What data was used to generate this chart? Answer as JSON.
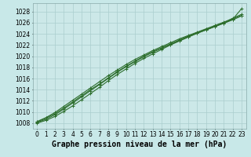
{
  "background_color": "#c8e8e8",
  "plot_bg_color": "#cce8e8",
  "grid_color": "#aacece",
  "line_color": "#2d6e2d",
  "marker_color": "#2d6e2d",
  "title": "Graphe pression niveau de la mer (hPa)",
  "xlim": [
    -0.5,
    23.5
  ],
  "ylim": [
    1007.0,
    1029.5
  ],
  "yticks": [
    1008,
    1010,
    1012,
    1014,
    1016,
    1018,
    1020,
    1022,
    1024,
    1026,
    1028
  ],
  "xticks": [
    0,
    1,
    2,
    3,
    4,
    5,
    6,
    7,
    8,
    9,
    10,
    11,
    12,
    13,
    14,
    15,
    16,
    17,
    18,
    19,
    20,
    21,
    22,
    23
  ],
  "series": [
    [
      1008.0,
      1008.5,
      1009.2,
      1010.1,
      1011.1,
      1012.2,
      1013.3,
      1014.4,
      1015.6,
      1016.7,
      1017.7,
      1018.7,
      1019.6,
      1020.4,
      1021.2,
      1022.0,
      1022.7,
      1023.4,
      1024.1,
      1024.7,
      1025.3,
      1025.9,
      1026.6,
      1028.5
    ],
    [
      1008.3,
      1009.0,
      1009.9,
      1011.0,
      1012.1,
      1013.2,
      1014.3,
      1015.4,
      1016.5,
      1017.5,
      1018.5,
      1019.4,
      1020.2,
      1021.0,
      1021.7,
      1022.4,
      1023.1,
      1023.7,
      1024.3,
      1024.9,
      1025.5,
      1026.1,
      1026.7,
      1027.3
    ],
    [
      1008.1,
      1008.7,
      1009.5,
      1010.5,
      1011.6,
      1012.7,
      1013.8,
      1014.9,
      1016.0,
      1017.1,
      1018.1,
      1019.0,
      1019.9,
      1020.7,
      1021.4,
      1022.1,
      1022.8,
      1023.5,
      1024.1,
      1024.7,
      1025.3,
      1025.9,
      1026.5,
      1027.2
    ],
    [
      1008.2,
      1008.9,
      1009.7,
      1010.7,
      1011.8,
      1012.9,
      1014.0,
      1015.0,
      1016.1,
      1017.2,
      1018.2,
      1019.1,
      1020.0,
      1020.8,
      1021.5,
      1022.2,
      1022.9,
      1023.6,
      1024.2,
      1024.8,
      1025.4,
      1026.0,
      1026.8,
      1027.5
    ]
  ],
  "title_fontsize": 7,
  "tick_fontsize": 5.5,
  "marker": "+",
  "marker_size": 3.5,
  "line_width": 0.8
}
